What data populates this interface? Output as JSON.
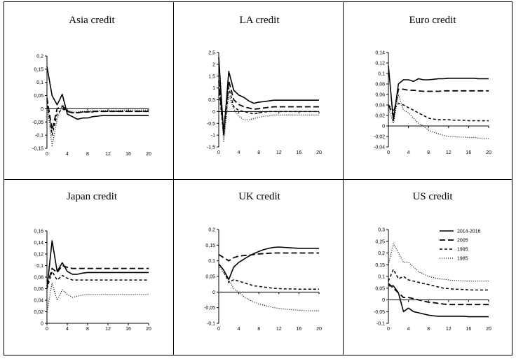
{
  "figure_kind": "impulse response panels",
  "legend": {
    "entries": [
      "2014-2016",
      "2005",
      "1995",
      "1985"
    ],
    "styles": [
      "solid",
      "long-dash",
      "short-dash",
      "dotted"
    ]
  },
  "chart_data": [
    {
      "type": "line",
      "title": "Asia credit",
      "x_ticks": [
        0,
        4,
        8,
        12,
        16,
        20
      ],
      "y_ticks": [
        0.2,
        0.15,
        0.1,
        0.05,
        0,
        -0.05,
        -0.1,
        -0.15
      ],
      "y_tick_labels": [
        "0,2",
        "0,15",
        "0,1",
        "0,05",
        "0",
        "-0,05",
        "-0,1",
        "-0,15"
      ],
      "ylim": [
        -0.15,
        0.2
      ],
      "xlim": [
        0,
        20
      ],
      "x": [
        0,
        1,
        2,
        3,
        4,
        5,
        6,
        7,
        8,
        9,
        10,
        11,
        12,
        13,
        14,
        15,
        16,
        17,
        18,
        19,
        20
      ],
      "series": [
        {
          "name": "2014-2016",
          "values": [
            0.16,
            0.05,
            0.015,
            0.055,
            -0.02,
            -0.03,
            -0.04,
            -0.035,
            -0.035,
            -0.03,
            -0.028,
            -0.025,
            -0.025,
            -0.025,
            -0.025,
            -0.025,
            -0.025,
            -0.025,
            -0.025,
            -0.025,
            -0.025
          ]
        },
        {
          "name": "2005",
          "values": [
            0.04,
            -0.08,
            0.0,
            0.01,
            -0.01,
            -0.015,
            -0.015,
            -0.012,
            -0.012,
            -0.01,
            -0.01,
            -0.01,
            -0.01,
            -0.01,
            -0.01,
            -0.01,
            -0.01,
            -0.01,
            -0.01,
            -0.01,
            -0.01
          ]
        },
        {
          "name": "1995",
          "values": [
            0.03,
            -0.1,
            -0.02,
            0.0,
            -0.01,
            -0.015,
            -0.015,
            -0.012,
            -0.012,
            -0.012,
            -0.01,
            -0.01,
            -0.01,
            -0.01,
            -0.01,
            -0.01,
            -0.01,
            -0.01,
            -0.01,
            -0.01,
            -0.01
          ]
        },
        {
          "name": "1985",
          "values": [
            0.02,
            -0.14,
            -0.04,
            0.015,
            -0.005,
            -0.012,
            -0.012,
            -0.01,
            -0.01,
            -0.008,
            -0.008,
            -0.007,
            -0.007,
            -0.006,
            -0.006,
            -0.005,
            -0.005,
            -0.005,
            -0.005,
            -0.005,
            -0.005
          ]
        }
      ]
    },
    {
      "type": "line",
      "title": "LA credit",
      "x_ticks": [
        0,
        4,
        8,
        12,
        16,
        20
      ],
      "y_ticks": [
        2.5,
        2,
        1.5,
        1,
        0.5,
        0,
        -0.5,
        -1,
        -1.5
      ],
      "y_tick_labels": [
        "2,5",
        "2",
        "1,5",
        "1",
        "0,5",
        "0",
        "-0,5",
        "-1",
        "-1,5"
      ],
      "ylim": [
        -1.5,
        2.5
      ],
      "xlim": [
        0,
        20
      ],
      "x": [
        0,
        1,
        2,
        3,
        4,
        5,
        6,
        7,
        8,
        9,
        10,
        11,
        12,
        13,
        14,
        15,
        16,
        17,
        18,
        19,
        20
      ],
      "series": [
        {
          "name": "2014-2016",
          "values": [
            2.3,
            -1.0,
            1.7,
            0.9,
            0.7,
            0.6,
            0.45,
            0.35,
            0.4,
            0.42,
            0.45,
            0.48,
            0.48,
            0.48,
            0.48,
            0.48,
            0.48,
            0.48,
            0.48,
            0.48,
            0.48
          ]
        },
        {
          "name": "2005",
          "values": [
            1.3,
            -0.8,
            1.3,
            0.5,
            0.3,
            0.2,
            0.15,
            0.1,
            0.12,
            0.15,
            0.18,
            0.2,
            0.2,
            0.2,
            0.2,
            0.2,
            0.2,
            0.2,
            0.2,
            0.2,
            0.2
          ]
        },
        {
          "name": "1995",
          "values": [
            1.0,
            -1.0,
            1.0,
            0.2,
            0.05,
            0.0,
            -0.05,
            -0.1,
            -0.05,
            -0.02,
            0.0,
            0.0,
            0.0,
            0.0,
            0.0,
            0.0,
            0.0,
            0.0,
            0.0,
            0.0,
            0.0
          ]
        },
        {
          "name": "1985",
          "values": [
            1.6,
            -1.3,
            0.7,
            0.1,
            -0.2,
            -0.35,
            -0.35,
            -0.3,
            -0.25,
            -0.2,
            -0.18,
            -0.15,
            -0.15,
            -0.15,
            -0.15,
            -0.15,
            -0.15,
            -0.15,
            -0.15,
            -0.15,
            -0.15
          ]
        }
      ]
    },
    {
      "type": "line",
      "title": "Euro credit",
      "x_ticks": [
        0,
        4,
        8,
        12,
        16,
        20
      ],
      "y_ticks": [
        0.14,
        0.12,
        0.1,
        0.08,
        0.06,
        0.04,
        0.02,
        0,
        -0.02,
        -0.04
      ],
      "y_tick_labels": [
        "0,14",
        "0,12",
        "0,1",
        "0,08",
        "0,06",
        "0,04",
        "0,02",
        "0",
        "-0,02",
        "-0,04"
      ],
      "ylim": [
        -0.04,
        0.14
      ],
      "xlim": [
        0,
        20
      ],
      "x": [
        0,
        1,
        2,
        3,
        4,
        5,
        6,
        7,
        8,
        9,
        10,
        11,
        12,
        13,
        14,
        15,
        16,
        17,
        18,
        19,
        20
      ],
      "series": [
        {
          "name": "2014-2016",
          "values": [
            0.115,
            0.01,
            0.08,
            0.088,
            0.088,
            0.085,
            0.09,
            0.088,
            0.088,
            0.089,
            0.09,
            0.09,
            0.091,
            0.091,
            0.091,
            0.091,
            0.091,
            0.091,
            0.09,
            0.09,
            0.09
          ]
        },
        {
          "name": "2005",
          "values": [
            0.04,
            0.02,
            0.07,
            0.07,
            0.068,
            0.068,
            0.067,
            0.066,
            0.066,
            0.066,
            0.066,
            0.067,
            0.067,
            0.067,
            0.067,
            0.067,
            0.067,
            0.067,
            0.067,
            0.067,
            0.067
          ]
        },
        {
          "name": "1995",
          "values": [
            0.04,
            0.03,
            0.043,
            0.04,
            0.035,
            0.03,
            0.025,
            0.02,
            0.015,
            0.013,
            0.012,
            0.012,
            0.012,
            0.011,
            0.011,
            0.011,
            0.01,
            0.01,
            0.01,
            0.01,
            0.01
          ]
        },
        {
          "name": "1985",
          "values": [
            0.035,
            0.005,
            0.06,
            0.03,
            0.025,
            0.015,
            0.005,
            0.0,
            -0.008,
            -0.012,
            -0.015,
            -0.018,
            -0.02,
            -0.02,
            -0.021,
            -0.021,
            -0.022,
            -0.022,
            -0.023,
            -0.024,
            -0.024
          ]
        }
      ]
    },
    {
      "type": "line",
      "title": "Japan credit",
      "x_ticks": [
        0,
        4,
        8,
        12,
        16,
        20
      ],
      "y_ticks": [
        0.16,
        0.14,
        0.12,
        0.1,
        0.08,
        0.06,
        0.04,
        0.02,
        0
      ],
      "y_tick_labels": [
        "0,16",
        "0,14",
        "0,12",
        "0,1",
        "0,08",
        "0,06",
        "0,04",
        "0,02",
        "0"
      ],
      "ylim": [
        0,
        0.16
      ],
      "xlim": [
        0,
        20
      ],
      "x": [
        0,
        1,
        2,
        3,
        4,
        5,
        6,
        7,
        8,
        9,
        10,
        11,
        12,
        13,
        14,
        15,
        16,
        17,
        18,
        19,
        20
      ],
      "series": [
        {
          "name": "2014-2016",
          "values": [
            0.06,
            0.143,
            0.09,
            0.105,
            0.09,
            0.085,
            0.085,
            0.087,
            0.088,
            0.088,
            0.088,
            0.088,
            0.088,
            0.088,
            0.088,
            0.088,
            0.088,
            0.088,
            0.088,
            0.088,
            0.088
          ]
        },
        {
          "name": "2005",
          "values": [
            0.065,
            0.095,
            0.088,
            0.1,
            0.097,
            0.095,
            0.095,
            0.095,
            0.095,
            0.095,
            0.095,
            0.095,
            0.095,
            0.095,
            0.095,
            0.095,
            0.095,
            0.095,
            0.095,
            0.095,
            0.095
          ]
        },
        {
          "name": "1995",
          "values": [
            0.06,
            0.09,
            0.075,
            0.083,
            0.078,
            0.075,
            0.075,
            0.075,
            0.075,
            0.075,
            0.075,
            0.075,
            0.075,
            0.075,
            0.075,
            0.075,
            0.075,
            0.075,
            0.075,
            0.075,
            0.075
          ]
        },
        {
          "name": "1985",
          "values": [
            0.02,
            0.07,
            0.04,
            0.058,
            0.05,
            0.045,
            0.047,
            0.049,
            0.05,
            0.05,
            0.05,
            0.05,
            0.05,
            0.05,
            0.05,
            0.05,
            0.05,
            0.05,
            0.05,
            0.05,
            0.05
          ]
        }
      ]
    },
    {
      "type": "line",
      "title": "UK credit",
      "x_ticks": [
        0,
        4,
        8,
        12,
        16,
        20
      ],
      "y_ticks": [
        0.2,
        0.15,
        0.1,
        0.05,
        0,
        -0.05,
        -0.1
      ],
      "y_tick_labels": [
        "0,2",
        "0,15",
        "0,1",
        "0,05",
        "0",
        "-0,05",
        "-0,1"
      ],
      "ylim": [
        -0.1,
        0.2
      ],
      "xlim": [
        0,
        20
      ],
      "x": [
        0,
        1,
        2,
        3,
        4,
        5,
        6,
        7,
        8,
        9,
        10,
        11,
        12,
        13,
        14,
        15,
        16,
        17,
        18,
        19,
        20
      ],
      "series": [
        {
          "name": "2014-2016",
          "values": [
            0.09,
            0.07,
            0.04,
            0.08,
            0.095,
            0.105,
            0.115,
            0.123,
            0.13,
            0.136,
            0.14,
            0.143,
            0.144,
            0.143,
            0.142,
            0.141,
            0.14,
            0.14,
            0.14,
            0.14,
            0.14
          ]
        },
        {
          "name": "2005",
          "values": [
            0.12,
            0.11,
            0.1,
            0.11,
            0.115,
            0.117,
            0.118,
            0.12,
            0.122,
            0.123,
            0.124,
            0.125,
            0.125,
            0.125,
            0.125,
            0.125,
            0.125,
            0.125,
            0.125,
            0.125,
            0.125
          ]
        },
        {
          "name": "1995",
          "values": [
            0.09,
            0.07,
            0.03,
            0.04,
            0.035,
            0.03,
            0.025,
            0.02,
            0.018,
            0.016,
            0.014,
            0.012,
            0.011,
            0.01,
            0.01,
            0.01,
            0.009,
            0.009,
            0.009,
            0.009,
            0.009
          ]
        },
        {
          "name": "1985",
          "values": [
            0.085,
            0.06,
            0.04,
            0.01,
            0.0,
            -0.015,
            -0.025,
            -0.032,
            -0.038,
            -0.042,
            -0.046,
            -0.05,
            -0.052,
            -0.054,
            -0.056,
            -0.057,
            -0.058,
            -0.059,
            -0.06,
            -0.06,
            -0.06
          ]
        }
      ]
    },
    {
      "type": "line",
      "title": "US credit",
      "x_ticks": [
        0,
        4,
        8,
        12,
        16,
        20
      ],
      "y_ticks": [
        0.3,
        0.25,
        0.2,
        0.15,
        0.1,
        0.05,
        0,
        -0.05,
        -0.1
      ],
      "y_tick_labels": [
        "0,3",
        "0,25",
        "0,2",
        "0,15",
        "0,1",
        "0,05",
        "0",
        "-0,05",
        "-0,1"
      ],
      "ylim": [
        -0.1,
        0.3
      ],
      "xlim": [
        0,
        20
      ],
      "x": [
        0,
        1,
        2,
        3,
        4,
        5,
        6,
        7,
        8,
        9,
        10,
        11,
        12,
        13,
        14,
        15,
        16,
        17,
        18,
        19,
        20
      ],
      "series": [
        {
          "name": "2014-2016",
          "values": [
            0.06,
            0.06,
            0.03,
            -0.05,
            -0.035,
            -0.05,
            -0.055,
            -0.06,
            -0.065,
            -0.068,
            -0.07,
            -0.07,
            -0.07,
            -0.07,
            -0.07,
            -0.07,
            -0.072,
            -0.072,
            -0.072,
            -0.072,
            -0.072
          ]
        },
        {
          "name": "2005",
          "values": [
            0.07,
            0.05,
            0.03,
            0.01,
            0.01,
            0.005,
            0.0,
            -0.005,
            -0.01,
            -0.012,
            -0.015,
            -0.018,
            -0.02,
            -0.02,
            -0.02,
            -0.02,
            -0.02,
            -0.02,
            -0.02,
            -0.02,
            -0.02
          ]
        },
        {
          "name": "1995",
          "values": [
            0.08,
            0.13,
            0.09,
            0.1,
            0.085,
            0.08,
            0.075,
            0.07,
            0.065,
            0.06,
            0.055,
            0.05,
            0.048,
            0.046,
            0.045,
            0.044,
            0.043,
            0.042,
            0.042,
            0.042,
            0.042
          ]
        },
        {
          "name": "1985",
          "values": [
            0.15,
            0.24,
            0.2,
            0.16,
            0.16,
            0.14,
            0.12,
            0.11,
            0.1,
            0.095,
            0.09,
            0.088,
            0.085,
            0.083,
            0.082,
            0.081,
            0.08,
            0.08,
            0.08,
            0.08,
            0.08
          ]
        }
      ]
    }
  ]
}
